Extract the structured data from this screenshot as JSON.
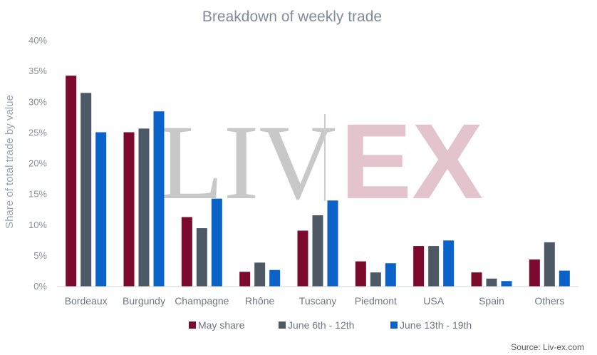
{
  "chart_data": {
    "type": "bar",
    "title": "Breakdown of weekly trade",
    "ylabel": "Share of total trade by value",
    "xlabel": "",
    "ylim": [
      0,
      40
    ],
    "yticks": [
      0,
      5,
      10,
      15,
      20,
      25,
      30,
      35,
      40
    ],
    "ytick_labels": [
      "0%",
      "5%",
      "10%",
      "15%",
      "20%",
      "25%",
      "30%",
      "35%",
      "40%"
    ],
    "categories": [
      "Bordeaux",
      "Burgundy",
      "Champagne",
      "Rhône",
      "Tuscany",
      "Piedmont",
      "USA",
      "Spain",
      "Others"
    ],
    "series": [
      {
        "name": "May share",
        "color": "#7b0a2e",
        "values": [
          34.3,
          25.1,
          11.3,
          2.4,
          9.1,
          4.1,
          6.6,
          2.3,
          4.4
        ]
      },
      {
        "name": "June 6th - 12th",
        "color": "#4d5a66",
        "values": [
          31.5,
          25.7,
          9.5,
          3.9,
          11.6,
          2.3,
          6.6,
          1.3,
          7.2
        ]
      },
      {
        "name": "June 13th - 19th",
        "color": "#0b63c9",
        "values": [
          25.1,
          28.5,
          14.3,
          2.7,
          14.0,
          3.8,
          7.5,
          0.9,
          2.6
        ]
      }
    ],
    "grid": false,
    "legend": "bottom"
  },
  "watermark": {
    "left": "LIV",
    "right": "EX",
    "left_color": "#c8c8c8",
    "right_color": "#e3c3cc"
  },
  "source": "Source: Liv-ex.com"
}
